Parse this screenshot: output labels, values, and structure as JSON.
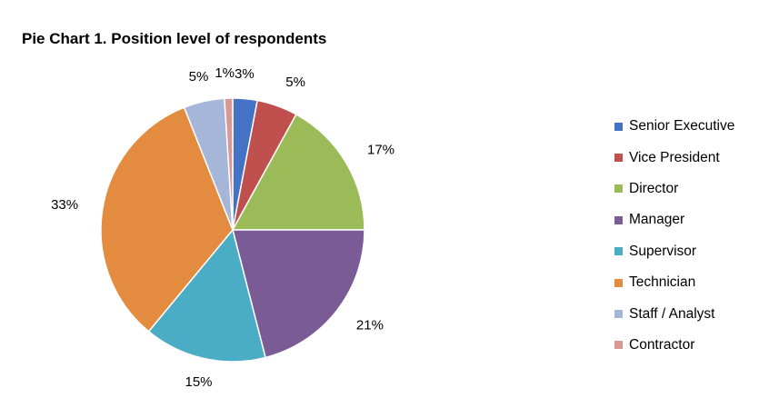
{
  "chart_data": {
    "type": "pie",
    "title": "Pie Chart 1. Position level of respondents",
    "categories": [
      "Senior Executive",
      "Vice President",
      "Director",
      "Manager",
      "Supervisor",
      "Technician",
      "Staff / Analyst",
      "Contractor"
    ],
    "values": [
      3,
      5,
      17,
      21,
      15,
      33,
      5,
      1
    ],
    "value_labels": [
      "3%",
      "5%",
      "17%",
      "21%",
      "15%",
      "33%",
      "5%",
      "1%"
    ],
    "colors": [
      "#4472C4",
      "#C0504D",
      "#9BBB59",
      "#7B5B96",
      "#4BACC6",
      "#E38B3F",
      "#A5B6D9",
      "#D99795"
    ],
    "legend_position": "right"
  }
}
